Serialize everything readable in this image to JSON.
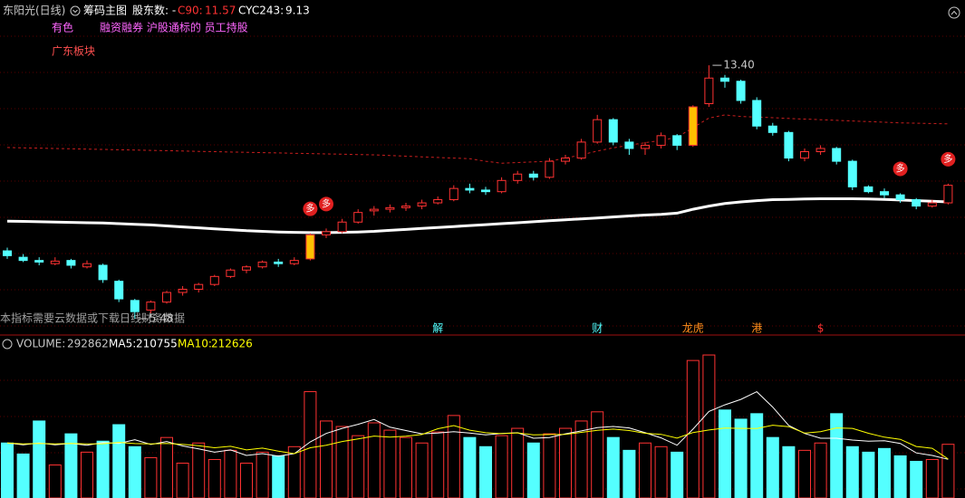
{
  "header": {
    "name": "东阳光(日线)",
    "indicator": "筹码主图",
    "holders": "股东数: -",
    "c90_label": "C90:",
    "cyc_label": "CYC243:",
    "volume_label": "VOLUME:",
    "ma5_label": "MA5:",
    "ma10_label": "MA10:"
  },
  "tags": [
    "有色",
    "融资融券 沪股通标的 员工持股",
    "广东板块"
  ],
  "note": "本指标需要云数据或下载日线财务数据",
  "events": [
    null,
    null,
    null,
    null,
    null,
    null,
    null,
    null,
    null,
    null,
    null,
    null,
    null,
    null,
    null,
    null,
    null,
    null,
    null,
    null,
    null,
    null,
    null,
    null,
    null,
    null,
    null,
    {
      "label": "解",
      "color": "#54ffff"
    },
    null,
    null,
    null,
    null,
    null,
    null,
    null,
    null,
    null,
    {
      "label": "财",
      "color": "#54ffff"
    },
    null,
    null,
    null,
    null,
    null,
    {
      "label": "龙虎",
      "color": "#ff8c1a"
    },
    null,
    null,
    null,
    {
      "label": "港",
      "color": "#ff8c1a"
    },
    null,
    null,
    null,
    {
      "label": "$",
      "color": "#ff3232"
    },
    null,
    null,
    null,
    null,
    null,
    null,
    null,
    null
  ],
  "signals": [
    null,
    null,
    null,
    null,
    null,
    null,
    null,
    null,
    null,
    null,
    null,
    null,
    null,
    null,
    null,
    null,
    null,
    null,
    null,
    "多",
    "多",
    null,
    null,
    null,
    null,
    null,
    null,
    null,
    null,
    null,
    null,
    null,
    null,
    null,
    null,
    null,
    null,
    null,
    null,
    null,
    null,
    null,
    null,
    null,
    null,
    null,
    null,
    null,
    null,
    null,
    null,
    null,
    null,
    null,
    null,
    null,
    "多",
    null,
    null,
    "多"
  ],
  "chart_data": [
    {
      "type": "candlestick",
      "ylim": [
        4.97,
        15.44
      ],
      "up_color": "#ff3232",
      "down_color": "#54ffff",
      "limit_up_color": "#ffc000",
      "limit_up_days": [
        19,
        43
      ],
      "max_label": "13.40",
      "min_label": "5.48",
      "candles": [
        [
          7.6,
          7.7,
          7.35,
          7.45
        ],
        [
          7.4,
          7.5,
          7.25,
          7.3
        ],
        [
          7.3,
          7.4,
          7.15,
          7.25
        ],
        [
          7.2,
          7.4,
          7.15,
          7.28
        ],
        [
          7.3,
          7.35,
          7.05,
          7.15
        ],
        [
          7.1,
          7.3,
          7.05,
          7.2
        ],
        [
          7.15,
          7.2,
          6.6,
          6.7
        ],
        [
          6.65,
          6.7,
          6.0,
          6.1
        ],
        [
          6.05,
          6.1,
          5.48,
          5.7
        ],
        [
          5.75,
          6.05,
          5.65,
          6.0
        ],
        [
          6.0,
          6.35,
          5.95,
          6.3
        ],
        [
          6.3,
          6.5,
          6.2,
          6.4
        ],
        [
          6.4,
          6.6,
          6.3,
          6.55
        ],
        [
          6.55,
          6.85,
          6.5,
          6.8
        ],
        [
          6.8,
          7.05,
          6.75,
          7.0
        ],
        [
          7.0,
          7.15,
          6.9,
          7.1
        ],
        [
          7.1,
          7.3,
          7.05,
          7.25
        ],
        [
          7.25,
          7.35,
          7.1,
          7.2
        ],
        [
          7.2,
          7.4,
          7.15,
          7.3
        ],
        [
          7.35,
          8.15,
          7.3,
          8.1
        ],
        [
          8.1,
          8.3,
          8.0,
          8.2
        ],
        [
          8.2,
          8.6,
          8.15,
          8.5
        ],
        [
          8.5,
          8.9,
          8.45,
          8.8
        ],
        [
          8.85,
          9.0,
          8.7,
          8.9
        ],
        [
          8.9,
          9.05,
          8.8,
          8.95
        ],
        [
          8.95,
          9.1,
          8.85,
          9.0
        ],
        [
          9.0,
          9.2,
          8.9,
          9.1
        ],
        [
          9.1,
          9.3,
          9.05,
          9.2
        ],
        [
          9.2,
          9.65,
          9.15,
          9.55
        ],
        [
          9.55,
          9.7,
          9.4,
          9.5
        ],
        [
          9.5,
          9.6,
          9.35,
          9.45
        ],
        [
          9.45,
          9.9,
          9.4,
          9.8
        ],
        [
          9.8,
          10.1,
          9.7,
          10.0
        ],
        [
          10.0,
          10.1,
          9.8,
          9.9
        ],
        [
          9.9,
          10.5,
          9.85,
          10.4
        ],
        [
          10.4,
          10.6,
          10.3,
          10.5
        ],
        [
          10.5,
          11.1,
          10.45,
          11.0
        ],
        [
          11.0,
          11.85,
          10.95,
          11.7
        ],
        [
          11.7,
          11.75,
          10.9,
          11.0
        ],
        [
          11.0,
          11.1,
          10.6,
          10.8
        ],
        [
          10.8,
          11.0,
          10.6,
          10.9
        ],
        [
          10.9,
          11.3,
          10.8,
          11.2
        ],
        [
          11.2,
          11.25,
          10.75,
          10.9
        ],
        [
          10.9,
          12.15,
          10.85,
          12.1
        ],
        [
          12.2,
          13.4,
          12.1,
          13.0
        ],
        [
          13.0,
          13.1,
          12.7,
          12.9
        ],
        [
          12.9,
          12.95,
          12.2,
          12.3
        ],
        [
          12.3,
          12.4,
          11.4,
          11.5
        ],
        [
          11.5,
          11.6,
          11.2,
          11.3
        ],
        [
          11.3,
          11.35,
          10.4,
          10.5
        ],
        [
          10.5,
          10.8,
          10.4,
          10.7
        ],
        [
          10.7,
          10.9,
          10.6,
          10.8
        ],
        [
          10.8,
          10.85,
          10.3,
          10.4
        ],
        [
          10.4,
          10.45,
          9.5,
          9.6
        ],
        [
          9.6,
          9.65,
          9.4,
          9.45
        ],
        [
          9.45,
          9.55,
          9.25,
          9.35
        ],
        [
          9.35,
          9.4,
          9.1,
          9.2
        ],
        [
          9.2,
          9.25,
          8.9,
          9.0
        ],
        [
          9.0,
          9.2,
          8.95,
          9.1
        ],
        [
          9.1,
          9.7,
          9.05,
          9.65
        ]
      ],
      "lines": [
        {
          "name": "C90",
          "color": "#c81e1e",
          "dashed": true,
          "values": [
            10.83,
            10.82,
            10.81,
            10.8,
            10.79,
            10.78,
            10.77,
            10.76,
            10.75,
            10.74,
            10.73,
            10.72,
            10.71,
            10.7,
            10.69,
            10.68,
            10.67,
            10.66,
            10.65,
            10.64,
            10.63,
            10.62,
            10.61,
            10.6,
            10.58,
            10.56,
            10.54,
            10.52,
            10.5,
            10.48,
            10.4,
            10.34,
            10.36,
            10.38,
            10.4,
            10.5,
            10.6,
            10.72,
            10.82,
            10.9,
            10.98,
            11.05,
            11.15,
            11.45,
            11.75,
            11.85,
            11.8,
            11.78,
            11.76,
            11.74,
            11.72,
            11.7,
            11.68,
            11.66,
            11.64,
            11.62,
            11.6,
            11.59,
            11.58,
            11.57
          ]
        },
        {
          "name": "CYC243",
          "color": "#ffffff",
          "dashed": false,
          "values": [
            8.53,
            8.52,
            8.51,
            8.5,
            8.49,
            8.48,
            8.47,
            8.45,
            8.43,
            8.41,
            8.38,
            8.35,
            8.32,
            8.29,
            8.26,
            8.23,
            8.21,
            8.19,
            8.18,
            8.17,
            8.17,
            8.18,
            8.19,
            8.21,
            8.24,
            8.27,
            8.3,
            8.33,
            8.36,
            8.39,
            8.42,
            8.45,
            8.48,
            8.51,
            8.54,
            8.57,
            8.6,
            8.63,
            8.66,
            8.69,
            8.72,
            8.74,
            8.78,
            8.9,
            9.0,
            9.08,
            9.13,
            9.17,
            9.2,
            9.21,
            9.22,
            9.23,
            9.23,
            9.23,
            9.22,
            9.21,
            9.19,
            9.17,
            9.15,
            9.13
          ]
        }
      ]
    },
    {
      "type": "bar",
      "ylim": [
        0,
        800000
      ],
      "series": [
        {
          "name": "VOLUME",
          "values": [
            300000,
            240000,
            420000,
            180000,
            350000,
            250000,
            310000,
            400000,
            280000,
            220000,
            330000,
            190000,
            300000,
            210000,
            260000,
            190000,
            250000,
            230000,
            280000,
            580000,
            420000,
            390000,
            340000,
            410000,
            370000,
            330000,
            300000,
            360000,
            450000,
            330000,
            280000,
            340000,
            380000,
            300000,
            350000,
            380000,
            420000,
            470000,
            330000,
            260000,
            300000,
            280000,
            250000,
            750000,
            780000,
            480000,
            430000,
            460000,
            330000,
            280000,
            260000,
            300000,
            460000,
            280000,
            250000,
            270000,
            230000,
            200000,
            210000,
            292862
          ]
        },
        {
          "name": "MA5",
          "color": "#ffffff",
          "values": [
            300000,
            290000,
            300000,
            290000,
            298000,
            288000,
            302000,
            298000,
            318000,
            292000,
            308000,
            284000,
            268000,
            250000,
            262000,
            232000,
            242000,
            228000,
            242000,
            306000,
            352000,
            380000,
            402000,
            428000,
            386000,
            368000,
            350000,
            354000,
            362000,
            354000,
            344000,
            352000,
            356000,
            326000,
            330000,
            350000,
            366000,
            384000,
            390000,
            382000,
            356000,
            328000,
            288000,
            376000,
            472000,
            508000,
            538000,
            580000,
            496000,
            396000,
            352000,
            326000,
            326000,
            316000,
            310000,
            312000,
            298000,
            246000,
            232000,
            210755
          ]
        },
        {
          "name": "MA10",
          "color": "#ffff00",
          "values": [
            300000,
            295000,
            298000,
            295000,
            298000,
            295000,
            296000,
            303000,
            297000,
            295000,
            298000,
            293000,
            285000,
            274000,
            282000,
            262000,
            272000,
            256000,
            242000,
            274000,
            288000,
            308000,
            322000,
            338000,
            332000,
            337000,
            346000,
            378000,
            395000,
            370000,
            356000,
            351000,
            355000,
            344000,
            346000,
            347000,
            358000,
            369000,
            376000,
            368000,
            353000,
            347000,
            327000,
            357000,
            371000,
            381000,
            380000,
            379000,
            397000,
            389000,
            354000,
            362000,
            382000,
            380000,
            353000,
            332000,
            320000,
            281000,
            271000,
            212626
          ]
        }
      ]
    }
  ]
}
